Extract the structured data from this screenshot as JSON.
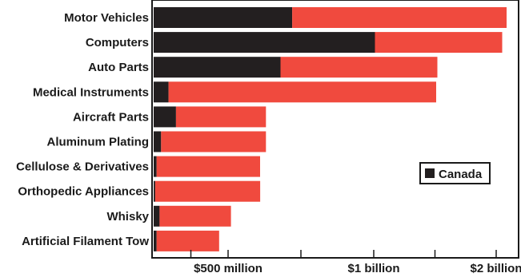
{
  "chart_data": {
    "type": "bar",
    "orientation": "horizontal",
    "stacked": true,
    "categories": [
      "Motor Vehicles",
      "Computers",
      "Auto Parts",
      "Medical Instruments",
      "Aircraft Parts",
      "Aluminum Plating",
      "Cellulose & Derivatives",
      "Orthopedic Appliances",
      "Whisky",
      "Artificial Filament Tow"
    ],
    "axis_ticks": [
      {
        "value": 0.25,
        "label": ""
      },
      {
        "value": 0.5,
        "label": "$500 million"
      },
      {
        "value": 0.75,
        "label": ""
      },
      {
        "value": 1.0,
        "label": "$1 billion"
      },
      {
        "value": 1.5,
        "label": ""
      },
      {
        "value": 2.0,
        "label": "$2 billion"
      }
    ],
    "axis_unit": "billion USD",
    "axis_scale": "nonlinear, breaks at $1 billion",
    "xlim": [
      0,
      2.25
    ],
    "grid": false,
    "legend_position": "right",
    "series": [
      {
        "name": "Canada",
        "color": "#231f20",
        "values": [
          0.72,
          1.01,
          0.68,
          0.1,
          0.15,
          0.05,
          0.02,
          0.01,
          0.04,
          0.02
        ]
      },
      {
        "name": "",
        "color": "#f04a3e",
        "values": [
          1.4,
          1.06,
          0.84,
          1.41,
          0.48,
          0.58,
          0.59,
          0.6,
          0.47,
          0.42
        ]
      }
    ]
  }
}
